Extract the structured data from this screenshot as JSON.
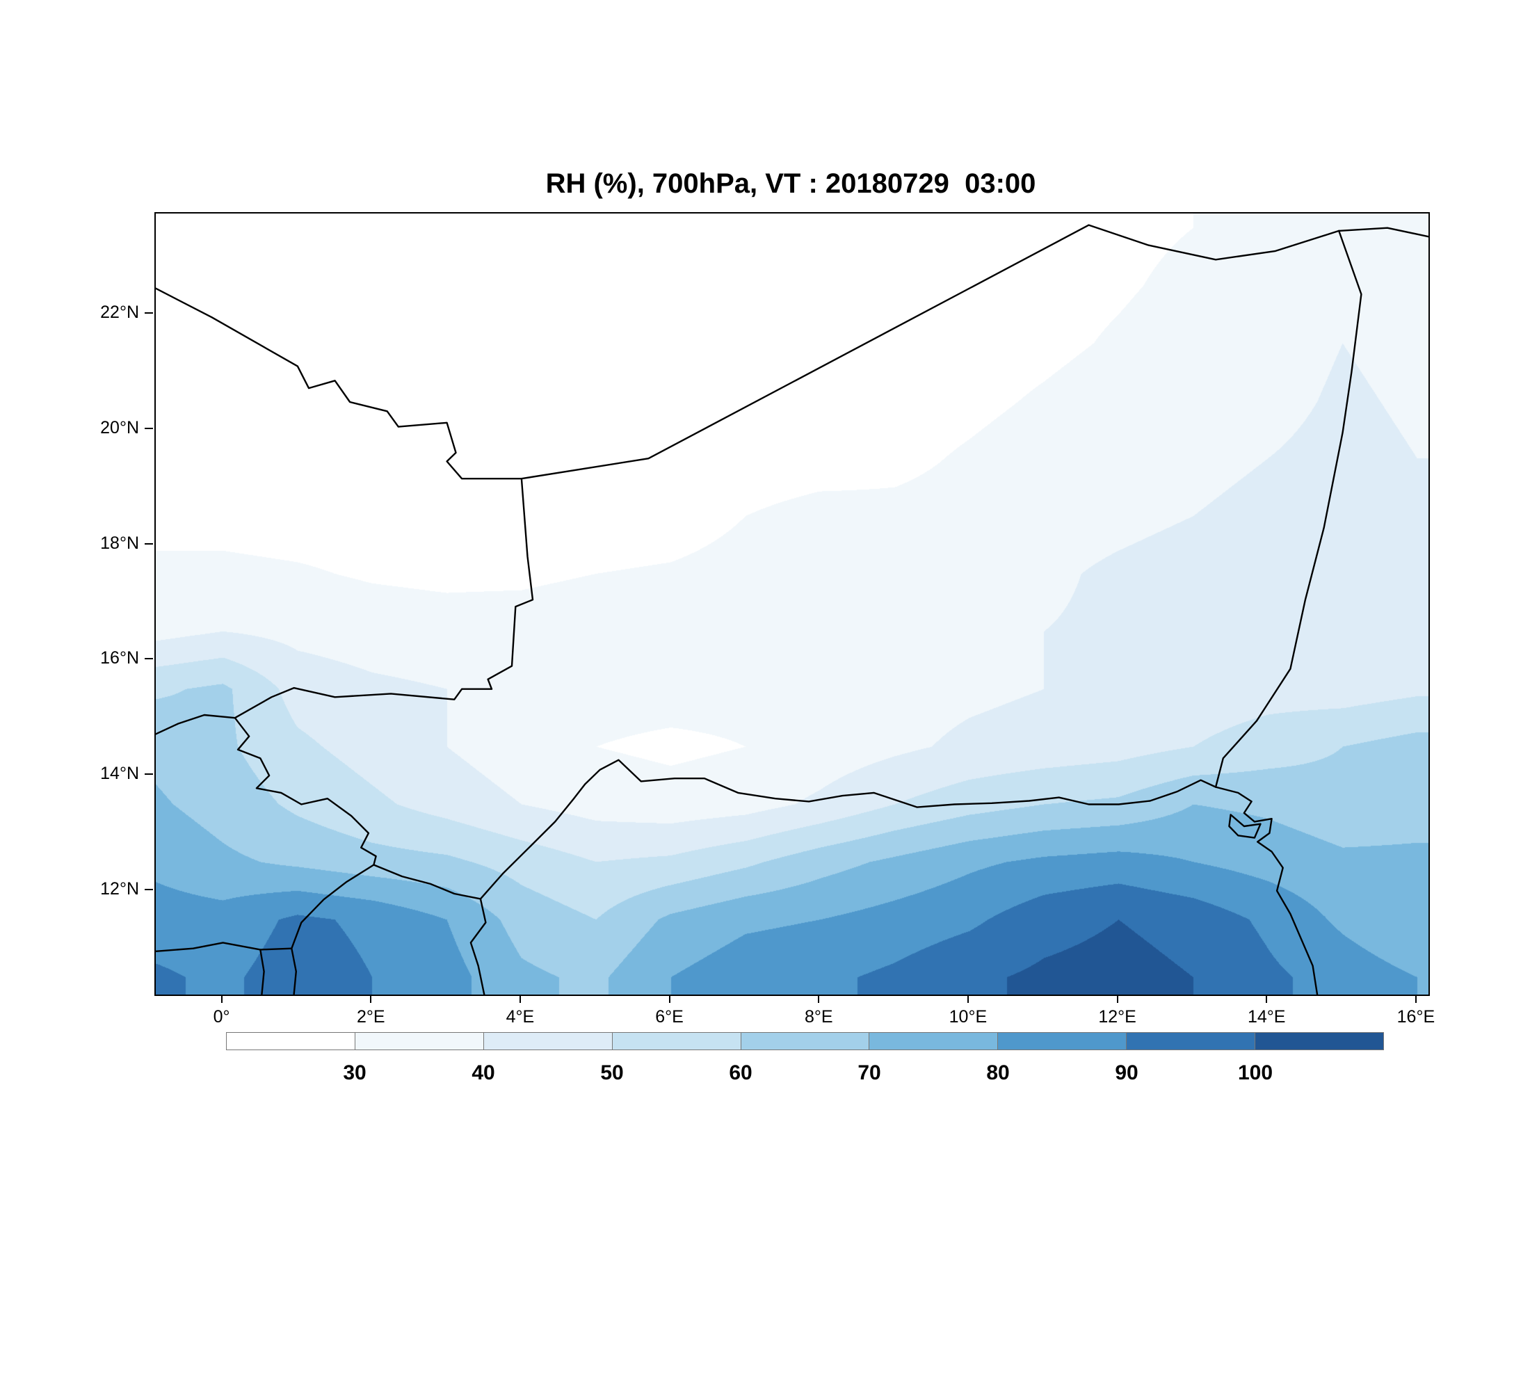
{
  "chart_data": {
    "type": "heatmap",
    "title": "RH (%), 700hPa, VT : 20180729  03:00",
    "variable": "RH",
    "units": "%",
    "pressure_level": "700hPa",
    "valid_time": "20180729  03:00",
    "xlabel": "",
    "ylabel": "",
    "legend_position": "bottom",
    "grid_lines": "off",
    "lon_range": [
      -0.9,
      16.15
    ],
    "lat_range": [
      10.2,
      23.75
    ],
    "x_ticks": [
      "0°",
      "2°E",
      "4°E",
      "6°E",
      "8°E",
      "10°E",
      "12°E",
      "14°E",
      "16°E"
    ],
    "x_tick_lons": [
      0,
      2,
      4,
      6,
      8,
      10,
      12,
      14,
      16
    ],
    "y_ticks": [
      "12°N",
      "14°N",
      "16°N",
      "18°N",
      "20°N",
      "22°N"
    ],
    "y_tick_lats": [
      12,
      14,
      16,
      18,
      20,
      22
    ],
    "levels": [
      30,
      40,
      50,
      60,
      70,
      80,
      90,
      100
    ],
    "colorbar_labels": [
      "30",
      "40",
      "50",
      "60",
      "70",
      "80",
      "90",
      "100"
    ],
    "colors": [
      "#ffffff",
      "#f1f7fb",
      "#deecf7",
      "#c6e2f2",
      "#a3d0ea",
      "#79b8de",
      "#4f98cc",
      "#3173b2",
      "#215694"
    ],
    "grid": {
      "lons": [
        -1,
        0,
        1,
        2,
        3,
        4,
        5,
        6,
        7,
        8,
        9,
        10,
        11,
        12,
        13,
        14,
        15,
        16
      ],
      "lats": [
        23.5,
        22.5,
        21.5,
        20.5,
        19.5,
        18.5,
        17.5,
        16.5,
        15.5,
        14.5,
        13.5,
        12.5,
        11.5,
        10.5
      ],
      "values": [
        [
          25,
          25,
          25,
          25,
          25,
          25,
          25,
          25,
          25,
          25,
          25,
          26,
          27,
          28,
          30,
          33,
          36,
          34
        ],
        [
          25,
          25,
          25,
          25,
          25,
          25,
          25,
          25,
          25,
          25,
          25,
          26,
          27,
          29,
          32,
          35,
          38,
          36
        ],
        [
          25,
          25,
          25,
          25,
          25,
          24,
          24,
          24,
          24,
          25,
          25,
          26,
          28,
          31,
          34,
          37,
          40,
          38
        ],
        [
          25,
          25,
          25,
          25,
          24,
          24,
          24,
          24,
          24,
          25,
          26,
          28,
          31,
          34,
          36,
          38,
          41,
          39
        ],
        [
          26,
          26,
          25,
          25,
          25,
          24,
          24,
          25,
          25,
          26,
          28,
          31,
          34,
          36,
          38,
          40,
          42,
          40
        ],
        [
          27,
          27,
          26,
          26,
          25,
          25,
          25,
          26,
          30,
          33,
          32,
          33,
          35,
          37,
          40,
          42,
          44,
          41
        ],
        [
          32,
          32,
          31,
          29,
          28,
          28,
          30,
          31,
          33,
          35,
          34,
          35,
          38,
          42,
          45,
          48,
          46,
          43
        ],
        [
          36,
          40,
          37,
          35,
          34,
          35,
          37,
          36,
          37,
          39,
          38,
          38,
          40,
          42,
          44,
          46,
          44,
          42
        ],
        [
          58,
          62,
          46,
          42,
          40,
          37,
          34,
          34,
          33,
          34,
          36,
          38,
          40,
          42,
          44,
          46,
          45,
          48
        ],
        [
          68,
          62,
          52,
          46,
          40,
          34,
          30,
          28,
          30,
          34,
          38,
          42,
          44,
          46,
          50,
          55,
          60,
          64
        ],
        [
          72,
          66,
          58,
          52,
          46,
          40,
          36,
          34,
          36,
          42,
          50,
          56,
          60,
          62,
          70,
          68,
          64,
          66
        ],
        [
          78,
          72,
          68,
          64,
          62,
          56,
          50,
          52,
          58,
          66,
          72,
          78,
          82,
          84,
          80,
          76,
          72,
          72
        ],
        [
          85,
          84,
          92,
          88,
          80,
          66,
          60,
          72,
          78,
          80,
          84,
          88,
          96,
          100,
          96,
          88,
          78,
          70
        ],
        [
          92,
          88,
          95,
          90,
          84,
          72,
          68,
          80,
          86,
          88,
          92,
          98,
          102,
          104,
          100,
          92,
          86,
          80
        ]
      ]
    },
    "borders": [
      [
        [
          -0.9,
          22.45
        ],
        [
          -0.15,
          21.95
        ],
        [
          1.0,
          21.1
        ],
        [
          1.15,
          20.72
        ],
        [
          1.5,
          20.85
        ],
        [
          1.7,
          20.48
        ],
        [
          2.2,
          20.32
        ],
        [
          2.35,
          20.05
        ],
        [
          3.0,
          20.12
        ],
        [
          3.12,
          19.6
        ],
        [
          3.0,
          19.45
        ],
        [
          3.2,
          19.15
        ],
        [
          4.0,
          19.15
        ]
      ],
      [
        [
          4.0,
          19.15
        ],
        [
          5.7,
          19.5
        ],
        [
          11.6,
          23.55
        ],
        [
          12.4,
          23.2
        ],
        [
          13.3,
          22.95
        ],
        [
          14.1,
          23.1
        ],
        [
          14.95,
          23.45
        ]
      ],
      [
        [
          14.95,
          23.45
        ],
        [
          15.6,
          23.5
        ],
        [
          16.15,
          23.35
        ]
      ],
      [
        [
          14.95,
          23.45
        ],
        [
          15.25,
          22.35
        ],
        [
          15.12,
          21.0
        ],
        [
          15.0,
          19.95
        ],
        [
          14.75,
          18.3
        ],
        [
          14.5,
          17.05
        ],
        [
          14.3,
          15.85
        ],
        [
          13.85,
          14.95
        ],
        [
          13.4,
          14.3
        ],
        [
          13.3,
          13.8
        ]
      ],
      [
        [
          4.0,
          19.15
        ],
        [
          4.08,
          17.8
        ],
        [
          4.15,
          17.05
        ],
        [
          3.92,
          16.93
        ],
        [
          3.87,
          15.9
        ],
        [
          3.55,
          15.67
        ],
        [
          3.6,
          15.5
        ],
        [
          3.2,
          15.5
        ],
        [
          3.1,
          15.32
        ],
        [
          2.25,
          15.42
        ],
        [
          1.5,
          15.36
        ],
        [
          0.95,
          15.52
        ],
        [
          0.65,
          15.36
        ],
        [
          0.16,
          15.0
        ]
      ],
      [
        [
          0.16,
          15.0
        ],
        [
          -0.25,
          15.05
        ],
        [
          -0.6,
          14.9
        ],
        [
          -0.9,
          14.72
        ]
      ],
      [
        [
          0.16,
          15.0
        ],
        [
          0.35,
          14.68
        ],
        [
          0.2,
          14.45
        ],
        [
          0.5,
          14.3
        ],
        [
          0.62,
          14.0
        ],
        [
          0.45,
          13.78
        ],
        [
          0.78,
          13.7
        ],
        [
          1.05,
          13.5
        ],
        [
          1.4,
          13.6
        ],
        [
          1.72,
          13.3
        ],
        [
          1.95,
          13.0
        ],
        [
          1.85,
          12.75
        ],
        [
          2.05,
          12.6
        ],
        [
          2.02,
          12.45
        ]
      ],
      [
        [
          2.02,
          12.45
        ],
        [
          2.4,
          12.25
        ],
        [
          2.78,
          12.12
        ],
        [
          3.1,
          11.95
        ],
        [
          3.45,
          11.86
        ]
      ],
      [
        [
          3.45,
          11.86
        ],
        [
          3.52,
          11.45
        ],
        [
          3.32,
          11.1
        ],
        [
          3.42,
          10.7
        ],
        [
          3.5,
          10.2
        ]
      ],
      [
        [
          2.02,
          12.45
        ],
        [
          1.65,
          12.15
        ],
        [
          1.35,
          11.85
        ],
        [
          1.05,
          11.45
        ],
        [
          0.92,
          11.0
        ],
        [
          0.98,
          10.6
        ],
        [
          0.95,
          10.2
        ]
      ],
      [
        [
          -0.9,
          10.95
        ],
        [
          -0.4,
          11.0
        ],
        [
          0.0,
          11.1
        ],
        [
          0.5,
          10.98
        ],
        [
          0.92,
          11.0
        ]
      ],
      [
        [
          0.5,
          10.98
        ],
        [
          0.55,
          10.6
        ],
        [
          0.52,
          10.2
        ]
      ],
      [
        [
          3.45,
          11.86
        ],
        [
          3.75,
          12.3
        ],
        [
          4.1,
          12.75
        ],
        [
          4.45,
          13.2
        ],
        [
          4.7,
          13.6
        ],
        [
          4.85,
          13.85
        ],
        [
          5.05,
          14.1
        ],
        [
          5.3,
          14.27
        ],
        [
          5.6,
          13.9
        ],
        [
          6.05,
          13.95
        ],
        [
          6.45,
          13.95
        ],
        [
          6.9,
          13.7
        ],
        [
          7.4,
          13.6
        ],
        [
          7.85,
          13.55
        ],
        [
          8.3,
          13.65
        ],
        [
          8.72,
          13.7
        ],
        [
          9.3,
          13.45
        ],
        [
          9.8,
          13.5
        ],
        [
          10.3,
          13.52
        ],
        [
          10.8,
          13.56
        ],
        [
          11.2,
          13.62
        ],
        [
          11.6,
          13.5
        ],
        [
          12.0,
          13.5
        ],
        [
          12.42,
          13.56
        ],
        [
          12.78,
          13.72
        ],
        [
          13.1,
          13.92
        ],
        [
          13.3,
          13.8
        ]
      ],
      [
        [
          13.3,
          13.8
        ],
        [
          13.6,
          13.7
        ],
        [
          13.78,
          13.55
        ],
        [
          13.68,
          13.35
        ],
        [
          13.82,
          13.2
        ],
        [
          14.05,
          13.25
        ],
        [
          14.02,
          13.0
        ],
        [
          13.86,
          12.85
        ],
        [
          14.05,
          12.68
        ],
        [
          14.2,
          12.4
        ],
        [
          14.12,
          12.0
        ],
        [
          14.3,
          11.6
        ],
        [
          14.45,
          11.15
        ],
        [
          14.6,
          10.7
        ],
        [
          14.66,
          10.2
        ]
      ],
      [
        [
          13.5,
          13.32
        ],
        [
          13.68,
          13.12
        ],
        [
          13.9,
          13.16
        ],
        [
          13.82,
          12.92
        ],
        [
          13.6,
          12.96
        ],
        [
          13.48,
          13.12
        ],
        [
          13.5,
          13.32
        ]
      ]
    ]
  }
}
